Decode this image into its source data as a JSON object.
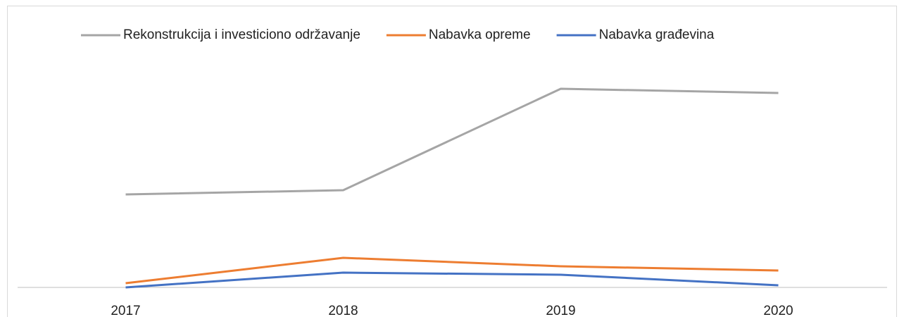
{
  "chart_data": {
    "type": "line",
    "categories": [
      "2017",
      "2018",
      "2019",
      "2020"
    ],
    "series": [
      {
        "name": "Rekonstrukcija i investiciono održavanje",
        "color": "#a5a5a5",
        "values": [
          44,
          46,
          94,
          92
        ]
      },
      {
        "name": "Nabavka opreme",
        "color": "#ed7d31",
        "values": [
          2,
          14,
          10,
          8
        ]
      },
      {
        "name": "Nabavka građevina",
        "color": "#4472c4",
        "values": [
          0,
          7,
          6,
          1
        ]
      }
    ],
    "ylim": [
      0,
      100
    ],
    "legend": "top"
  }
}
